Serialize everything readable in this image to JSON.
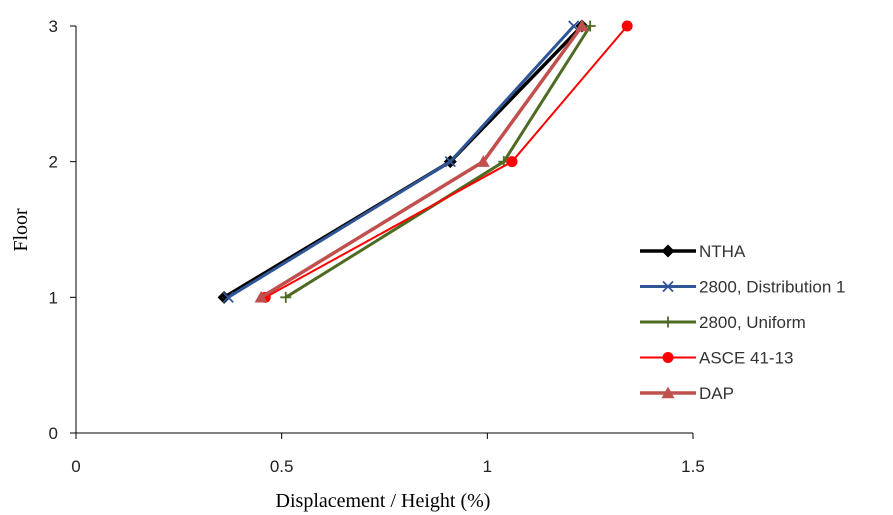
{
  "chart_data": {
    "type": "line",
    "xlabel": "Displacement / Height  (%)",
    "ylabel": "Floor",
    "xlim": [
      0,
      1.5
    ],
    "ylim": [
      0,
      3
    ],
    "x_ticks": [
      0,
      0.5,
      1,
      1.5
    ],
    "x_tick_labels": [
      "0",
      "0.5",
      "1",
      "1.5"
    ],
    "y_ticks": [
      0,
      1,
      2,
      3
    ],
    "y_tick_labels": [
      "0",
      "1",
      "2",
      "3"
    ],
    "grid": false,
    "legend_position": "right",
    "series": [
      {
        "name": "NTHA",
        "color": "#000000",
        "marker": "diamond",
        "line_width": 3.5,
        "points": [
          {
            "x": 0.36,
            "y": 1
          },
          {
            "x": 0.91,
            "y": 2
          },
          {
            "x": 1.23,
            "y": 3
          }
        ]
      },
      {
        "name": "2800, Distribution 1",
        "color": "#2f5597",
        "marker": "x",
        "line_width": 3,
        "points": [
          {
            "x": 0.37,
            "y": 1
          },
          {
            "x": 0.91,
            "y": 2
          },
          {
            "x": 1.21,
            "y": 3
          }
        ]
      },
      {
        "name": "2800, Uniform",
        "color": "#4e6b24",
        "marker": "plus",
        "line_width": 3,
        "points": [
          {
            "x": 0.51,
            "y": 1
          },
          {
            "x": 1.04,
            "y": 2
          },
          {
            "x": 1.25,
            "y": 3
          }
        ]
      },
      {
        "name": "ASCE 41-13",
        "color": "#ff0000",
        "marker": "circle",
        "line_width": 2,
        "points": [
          {
            "x": 0.46,
            "y": 1
          },
          {
            "x": 1.06,
            "y": 2
          },
          {
            "x": 1.34,
            "y": 3
          }
        ]
      },
      {
        "name": "DAP",
        "color": "#c0504d",
        "marker": "triangle",
        "line_width": 3.5,
        "points": [
          {
            "x": 0.45,
            "y": 1
          },
          {
            "x": 0.99,
            "y": 2
          },
          {
            "x": 1.23,
            "y": 3
          }
        ]
      }
    ]
  }
}
